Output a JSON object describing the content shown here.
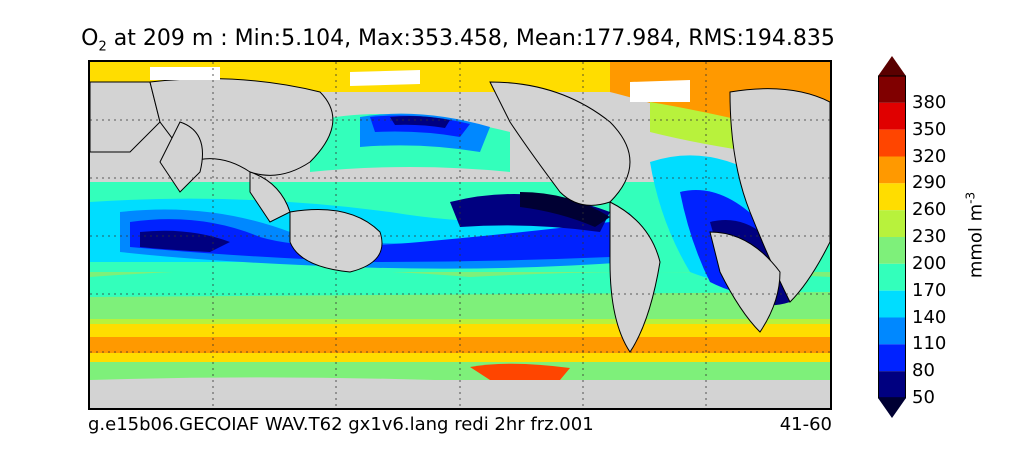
{
  "title": {
    "variable": "O",
    "subscript": "2",
    "text": " at 209 m : Min:5.104, Max:353.458, Mean:177.984, RMS:194.835"
  },
  "footer": {
    "run_name": "g.e15b06.GECOIAF WAV.T62 gx1v6.lang redi 2hr frz.001",
    "years": "41-60"
  },
  "colorbar": {
    "units": "mmol m",
    "units_exponent": "-3",
    "tick_labels": [
      "380",
      "350",
      "320",
      "290",
      "260",
      "230",
      "200",
      "170",
      "140",
      "110",
      "80",
      "50"
    ],
    "colors": [
      "#800000",
      "#e00000",
      "#ff4500",
      "#ff9900",
      "#ffdd00",
      "#b8f23c",
      "#7ef07a",
      "#33ffbb",
      "#00ddff",
      "#0088ff",
      "#0022ff",
      "#000080"
    ],
    "under_color": "#000033",
    "over_color": "#5a0000"
  },
  "map": {
    "land_color": "#d3d3d3",
    "ice_color": "#ffffff",
    "grid": "dotted"
  }
}
